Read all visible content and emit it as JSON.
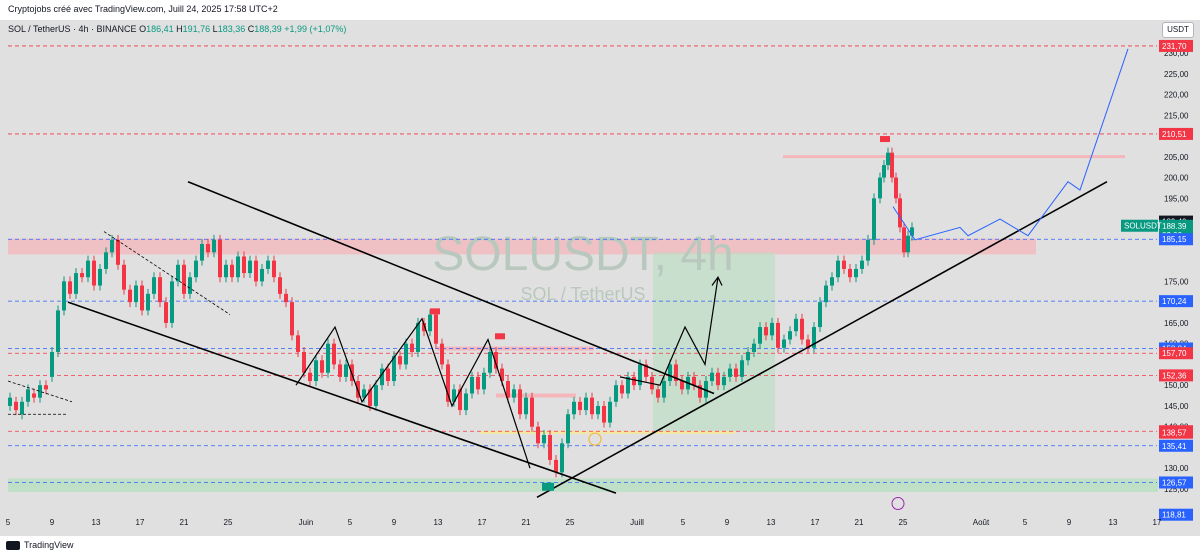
{
  "header": {
    "attribution": "Cryptojobs créé avec TradingView.com, Juill 24, 2025 17:58 UTC+2"
  },
  "legend": {
    "symbol": "SOL / TetherUS · 4h · BINANCE",
    "open_label": "O",
    "open": "186,41",
    "high_label": "H",
    "high": "191,76",
    "low_label": "L",
    "low": "183,36",
    "close_label": "C",
    "close": "188,39",
    "change": "+1,99 (+1,07%)"
  },
  "watermark": {
    "ticker": "SOLUSDT, 4h",
    "name": "SOL / TetherUS"
  },
  "currency_button": "USDT",
  "price_axis": {
    "ticks": [
      "230,00",
      "225,00",
      "220,00",
      "215,00",
      "205,00",
      "200,00",
      "195,00",
      "175,00",
      "165,00",
      "160,00",
      "150,00",
      "145,00",
      "140,00",
      "130,00",
      "125,00"
    ],
    "tags": [
      {
        "value": "231,70",
        "color": "#f23645"
      },
      {
        "value": "210,51",
        "color": "#f23645"
      },
      {
        "value": "189,40",
        "color": "#131722"
      },
      {
        "value": "188,39",
        "color": "#089981"
      },
      {
        "value": "02:00",
        "color": "#089981"
      },
      {
        "value": "185,15",
        "color": "#2962ff"
      },
      {
        "value": "170,24",
        "color": "#2962ff"
      },
      {
        "value": "158,84",
        "color": "#2962ff"
      },
      {
        "value": "157,70",
        "color": "#f23645"
      },
      {
        "value": "152,36",
        "color": "#f23645"
      },
      {
        "value": "138,91",
        "color": "#f23645"
      },
      {
        "value": "138,57",
        "color": "#f23645"
      },
      {
        "value": "135,41",
        "color": "#2962ff"
      },
      {
        "value": "126,57",
        "color": "#2962ff"
      },
      {
        "value": "118,81",
        "color": "#2962ff"
      }
    ],
    "symbol_tag": "SOLUSDT"
  },
  "time_axis": [
    "5",
    "9",
    "13",
    "17",
    "21",
    "25",
    "Juin",
    "5",
    "9",
    "13",
    "17",
    "21",
    "25",
    "Juill",
    "5",
    "9",
    "13",
    "17",
    "21",
    "25",
    "Août",
    "5",
    "9",
    "13",
    "17"
  ],
  "footer": {
    "brand": "TradingView"
  },
  "colors": {
    "up": "#089981",
    "down": "#f23645",
    "blue": "#2962ff",
    "zone_red": "#f4b6bb",
    "zone_green": "#b7dfc0"
  }
}
